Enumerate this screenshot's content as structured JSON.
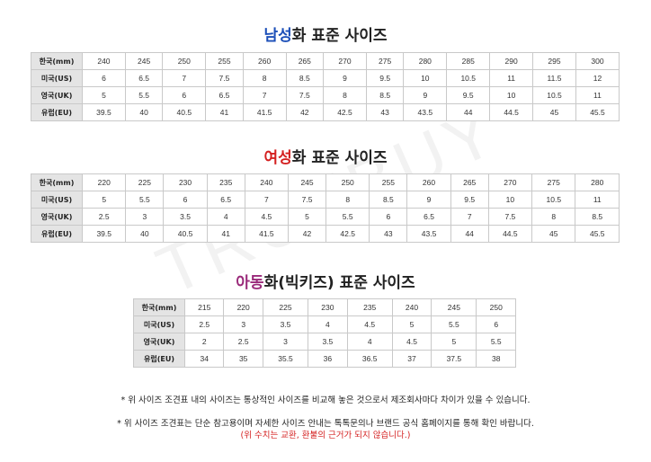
{
  "watermark": "TRUEBUY",
  "colors": {
    "men_accent": "#1c4fb8",
    "women_accent": "#d42020",
    "kids_accent": "#9a2a7a",
    "header_cell_bg": "#e4e4e4",
    "border": "#c9c9c9",
    "disclaimer_red": "#d42020"
  },
  "men": {
    "title_highlight": "남성",
    "title_rest": "화 표준 사이즈",
    "rows": [
      {
        "label": "한국(mm)",
        "values": [
          "240",
          "245",
          "250",
          "255",
          "260",
          "265",
          "270",
          "275",
          "280",
          "285",
          "290",
          "295",
          "300"
        ]
      },
      {
        "label": "미국(US)",
        "values": [
          "6",
          "6.5",
          "7",
          "7.5",
          "8",
          "8.5",
          "9",
          "9.5",
          "10",
          "10.5",
          "11",
          "11.5",
          "12"
        ]
      },
      {
        "label": "영국(UK)",
        "values": [
          "5",
          "5.5",
          "6",
          "6.5",
          "7",
          "7.5",
          "8",
          "8.5",
          "9",
          "9.5",
          "10",
          "10.5",
          "11"
        ]
      },
      {
        "label": "유럽(EU)",
        "values": [
          "39.5",
          "40",
          "40.5",
          "41",
          "41.5",
          "42",
          "42.5",
          "43",
          "43.5",
          "44",
          "44.5",
          "45",
          "45.5"
        ]
      }
    ]
  },
  "women": {
    "title_highlight": "여성",
    "title_rest": "화 표준 사이즈",
    "rows": [
      {
        "label": "한국(mm)",
        "values": [
          "220",
          "225",
          "230",
          "235",
          "240",
          "245",
          "250",
          "255",
          "260",
          "265",
          "270",
          "275",
          "280"
        ]
      },
      {
        "label": "미국(US)",
        "values": [
          "5",
          "5.5",
          "6",
          "6.5",
          "7",
          "7.5",
          "8",
          "8.5",
          "9",
          "9.5",
          "10",
          "10.5",
          "11"
        ]
      },
      {
        "label": "영국(UK)",
        "values": [
          "2.5",
          "3",
          "3.5",
          "4",
          "4.5",
          "5",
          "5.5",
          "6",
          "6.5",
          "7",
          "7.5",
          "8",
          "8.5"
        ]
      },
      {
        "label": "유럽(EU)",
        "values": [
          "39.5",
          "40",
          "40.5",
          "41",
          "41.5",
          "42",
          "42.5",
          "43",
          "43.5",
          "44",
          "44.5",
          "45",
          "45.5"
        ]
      }
    ]
  },
  "kids": {
    "title_highlight": "아동",
    "title_rest": "화(빅키즈) 표준 사이즈",
    "rows": [
      {
        "label": "한국(mm)",
        "values": [
          "215",
          "220",
          "225",
          "230",
          "235",
          "240",
          "245",
          "250"
        ]
      },
      {
        "label": "미국(US)",
        "values": [
          "2.5",
          "3",
          "3.5",
          "4",
          "4.5",
          "5",
          "5.5",
          "6"
        ]
      },
      {
        "label": "영국(UK)",
        "values": [
          "2",
          "2.5",
          "3",
          "3.5",
          "4",
          "4.5",
          "5",
          "5.5"
        ]
      },
      {
        "label": "유럽(EU)",
        "values": [
          "34",
          "35",
          "35.5",
          "36",
          "36.5",
          "37",
          "37.5",
          "38"
        ]
      }
    ]
  },
  "notes": {
    "note1": "* 위 사이즈 조견표 내의 사이즈는 통상적인 사이즈를 비교해 놓은 것으로서 제조회사마다 차이가 있을 수 있습니다.",
    "note2": "* 위 사이즈 조견표는 단순 참고용이며 자세한 사이즈 안내는 톡톡문의나 브랜드 공식 홈페이지를 통해 확인 바랍니다.",
    "note3": "(위 수치는 교환, 환불의 근거가 되지 않습니다.)"
  }
}
